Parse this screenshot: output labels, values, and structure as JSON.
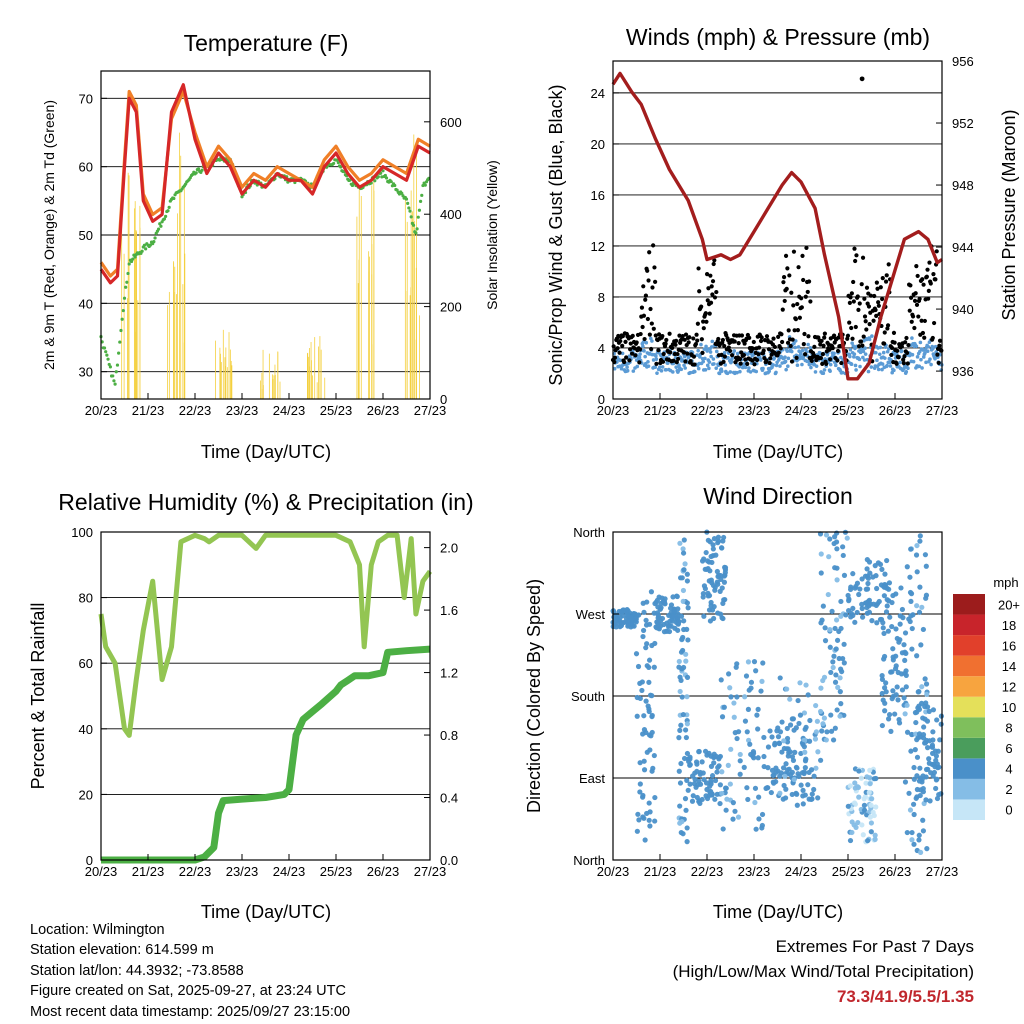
{
  "x_ticks": [
    "20/23",
    "21/23",
    "22/23",
    "23/23",
    "24/23",
    "25/23",
    "26/23",
    "27/23"
  ],
  "xlabel": "Time (Day/UTC)",
  "chart_data": [
    {
      "type": "line",
      "title": "Temperature (F)",
      "xlabel": "Time (Day/UTC)",
      "ylabel": "2m & 9m T (Red, Orange) & 2m Td (Green)",
      "y2label": "Solar Insolation (Yellow)",
      "ylim": [
        26,
        74
      ],
      "y_ticks": [
        30,
        40,
        50,
        60,
        70
      ],
      "y2lim": [
        0,
        710
      ],
      "y2_ticks": [
        0,
        200,
        400,
        600
      ],
      "series": [
        {
          "name": "2m T",
          "color": "#d62728",
          "x": [
            0,
            0.2,
            0.35,
            0.5,
            0.6,
            0.75,
            0.9,
            1.1,
            1.3,
            1.5,
            1.75,
            2.0,
            2.25,
            2.5,
            2.75,
            3.0,
            3.25,
            3.5,
            3.75,
            4.0,
            4.25,
            4.5,
            4.75,
            5.0,
            5.25,
            5.5,
            5.75,
            6.0,
            6.25,
            6.5,
            6.75,
            7.0
          ],
          "y": [
            45,
            43,
            44,
            60,
            70,
            68,
            55,
            52,
            53,
            68,
            72,
            64,
            59,
            62,
            60,
            56,
            58,
            57,
            59,
            58,
            58,
            56,
            60,
            62,
            59,
            57,
            58,
            60,
            59,
            58,
            63,
            62
          ]
        },
        {
          "name": "9m T",
          "color": "#f07f27",
          "x": [
            0,
            0.2,
            0.35,
            0.5,
            0.6,
            0.75,
            0.9,
            1.1,
            1.3,
            1.5,
            1.75,
            2.0,
            2.25,
            2.5,
            2.75,
            3.0,
            3.25,
            3.5,
            3.75,
            4.0,
            4.25,
            4.5,
            4.75,
            5.0,
            5.25,
            5.5,
            5.75,
            6.0,
            6.25,
            6.5,
            6.75,
            7.0
          ],
          "y": [
            46,
            44,
            45,
            61,
            71,
            69,
            56,
            53,
            54,
            67,
            71,
            65,
            60,
            63,
            61,
            57,
            59,
            58,
            60,
            59,
            58,
            57,
            61,
            63,
            60,
            58,
            59,
            61,
            60,
            59,
            64,
            63
          ]
        },
        {
          "name": "2m Td",
          "color": "#4caf44",
          "x": [
            0,
            0.3,
            0.45,
            0.6,
            0.75,
            0.9,
            1.1,
            1.3,
            1.5,
            1.75,
            2.0,
            2.25,
            2.5,
            2.75,
            3.0,
            3.25,
            3.5,
            3.75,
            4.0,
            4.25,
            4.5,
            4.75,
            5.0,
            5.25,
            5.5,
            5.75,
            6.0,
            6.25,
            6.5,
            6.7,
            6.85,
            7.0
          ],
          "y": [
            35,
            28,
            38,
            46,
            47,
            48,
            49,
            52,
            55,
            57,
            59,
            60,
            61,
            61,
            56,
            58,
            57,
            59,
            58,
            58,
            57,
            60,
            61,
            58,
            57,
            58,
            59,
            57,
            55,
            50,
            57,
            59
          ]
        },
        {
          "name": "Solar Insolation",
          "color": "#f4d03f",
          "axis": "y2",
          "peaks": [
            [
              0.65,
              690
            ],
            [
              1.6,
              690
            ],
            [
              2.6,
              200
            ],
            [
              3.6,
              150
            ],
            [
              4.6,
              160
            ],
            [
              5.6,
              700
            ],
            [
              6.6,
              700
            ]
          ]
        }
      ]
    },
    {
      "type": "scatter",
      "title": "Winds (mph) & Pressure (mb)",
      "xlabel": "Time (Day/UTC)",
      "ylabel": "Sonic/Prop Wind & Gust (Blue, Black)",
      "y2label": "Station Pressure (Maroon)",
      "ylim": [
        0,
        26.5
      ],
      "y_ticks": [
        0,
        4,
        8,
        12,
        16,
        20,
        24
      ],
      "y2lim": [
        934.2,
        956
      ],
      "y2_ticks": [
        936,
        940,
        944,
        948,
        952,
        956
      ],
      "series": [
        {
          "name": "Station Pressure",
          "color": "#a31d1d",
          "axis": "y2",
          "x": [
            0,
            0.15,
            0.4,
            0.6,
            0.9,
            1.2,
            1.6,
            1.9,
            2.0,
            2.3,
            2.5,
            2.7,
            3.0,
            3.3,
            3.6,
            3.8,
            4.0,
            4.3,
            4.5,
            4.8,
            5.0,
            5.2,
            5.45,
            5.7,
            6.0,
            6.2,
            6.5,
            6.7,
            6.9,
            7.0
          ],
          "y": [
            954.5,
            955.2,
            954.0,
            953.2,
            951.0,
            949.0,
            947.0,
            944.5,
            943.2,
            943.5,
            943.2,
            943.5,
            945.0,
            946.5,
            948.0,
            948.8,
            948.2,
            946.5,
            943.5,
            939.5,
            935.5,
            935.5,
            936.5,
            939.5,
            942.5,
            944.5,
            945.0,
            944.5,
            943.0,
            943.2
          ]
        },
        {
          "name": "Sonic/Prop Wind",
          "color": "#5b9bd5",
          "mean": 2.0
        },
        {
          "name": "Gust",
          "color": "#000000",
          "mean": 4.2,
          "max": 25.1
        }
      ]
    },
    {
      "type": "line",
      "title": "Relative Humidity (%) & Precipitation (in)",
      "xlabel": "Time (Day/UTC)",
      "ylabel": "Percent & Total Rainfall",
      "ylim": [
        0,
        100
      ],
      "y_ticks": [
        0,
        20,
        40,
        60,
        80,
        100
      ],
      "y2lim": [
        0,
        2.1
      ],
      "y2_ticks": [
        "0.0",
        "0.4",
        "0.8",
        "1.2",
        "1.6",
        "2.0"
      ],
      "series": [
        {
          "name": "Relative Humidity",
          "color": "#93c552",
          "x": [
            0,
            0.1,
            0.3,
            0.5,
            0.6,
            0.75,
            0.9,
            1.1,
            1.3,
            1.5,
            1.7,
            2.0,
            2.2,
            2.3,
            2.5,
            3.0,
            3.3,
            3.5,
            3.6,
            4.0,
            4.5,
            5.0,
            5.3,
            5.5,
            5.6,
            5.75,
            5.9,
            6.1,
            6.3,
            6.45,
            6.6,
            6.7,
            6.85,
            7.0
          ],
          "y": [
            75,
            65,
            60,
            40,
            38,
            55,
            70,
            85,
            55,
            65,
            97,
            99,
            98,
            97,
            99,
            99,
            95,
            99,
            99,
            99,
            99,
            99,
            97,
            90,
            65,
            90,
            97,
            99,
            99,
            80,
            98,
            75,
            85,
            88
          ]
        },
        {
          "name": "Total Precipitation",
          "color": "#4caf44",
          "x": [
            0,
            2.0,
            2.2,
            2.4,
            2.5,
            2.6,
            3.0,
            3.5,
            3.9,
            4.0,
            4.15,
            4.3,
            4.5,
            4.7,
            5.0,
            5.1,
            5.25,
            5.4,
            5.7,
            6.0,
            6.1,
            6.5,
            7.0
          ],
          "y": [
            0,
            0,
            0.02,
            0.08,
            0.3,
            0.38,
            0.39,
            0.4,
            0.42,
            0.45,
            0.8,
            0.9,
            0.95,
            1.0,
            1.08,
            1.12,
            1.15,
            1.18,
            1.18,
            1.2,
            1.33,
            1.34,
            1.35
          ]
        }
      ]
    },
    {
      "type": "scatter",
      "title": "Wind Direction",
      "xlabel": "Time (Day/UTC)",
      "ylabel": "Direction (Colored By Speed)",
      "y_ticks": [
        "North",
        "East",
        "South",
        "West",
        "North"
      ],
      "colorbar": {
        "unit": "mph",
        "labels": [
          "0",
          "2",
          "4",
          "6",
          "8",
          "10",
          "12",
          "14",
          "16",
          "18",
          "20+"
        ],
        "colors": [
          "#c6e6f7",
          "#85bde6",
          "#4a90c9",
          "#4a9d5c",
          "#7fbf5c",
          "#e4e05a",
          "#f7a43f",
          "#f07030",
          "#e1402b",
          "#c8242b",
          "#9c1c1c"
        ]
      },
      "segments": [
        {
          "x": [
            0,
            0.5
          ],
          "dir": [
            255,
            275
          ],
          "spd": 3
        },
        {
          "x": [
            0.5,
            0.9
          ],
          "dir": [
            20,
            300
          ],
          "spd": 3
        },
        {
          "x": [
            0.9,
            1.4
          ],
          "dir": [
            250,
            290
          ],
          "spd": 4
        },
        {
          "x": [
            1.4,
            1.6
          ],
          "dir": [
            20,
            360
          ],
          "spd": 2
        },
        {
          "x": [
            1.6,
            2.3
          ],
          "dir": [
            60,
            120
          ],
          "spd": 3
        },
        {
          "x": [
            1.9,
            2.4
          ],
          "dir": [
            260,
            360
          ],
          "spd": 3
        },
        {
          "x": [
            2.3,
            3.2
          ],
          "dir": [
            30,
            230
          ],
          "spd": 2
        },
        {
          "x": [
            3.2,
            4.1
          ],
          "dir": [
            70,
            150
          ],
          "spd": 3
        },
        {
          "x": [
            3.5,
            4.5
          ],
          "dir": [
            60,
            200
          ],
          "spd": 2
        },
        {
          "x": [
            4.4,
            5.0
          ],
          "dir": [
            120,
            360
          ],
          "spd": 2
        },
        {
          "x": [
            5.0,
            5.6
          ],
          "dir": [
            20,
            100
          ],
          "spd": 1
        },
        {
          "x": [
            5.0,
            5.9
          ],
          "dir": [
            260,
            330
          ],
          "spd": 5
        },
        {
          "x": [
            5.7,
            6.3
          ],
          "dir": [
            140,
            300
          ],
          "spd": 4
        },
        {
          "x": [
            6.2,
            6.7
          ],
          "dir": [
            0,
            360
          ],
          "spd": 2
        },
        {
          "x": [
            6.4,
            7.0
          ],
          "dir": [
            60,
            170
          ],
          "spd": 3
        }
      ]
    }
  ],
  "info": {
    "location": "Location: Wilmington",
    "elevation": "Station elevation: 614.599 m",
    "latlon": "Station lat/lon: 44.3932; -73.8588",
    "created": "Figure created on Sat, 2025-09-27, at 23:24 UTC",
    "recent": "Most recent data timestamp: 2025/09/27 23:15:00"
  },
  "extremes": {
    "title": "Extremes For Past 7 Days",
    "subtitle": "(High/Low/Max Wind/Total Precipitation)",
    "values": "73.3/41.9/5.5/1.35"
  }
}
